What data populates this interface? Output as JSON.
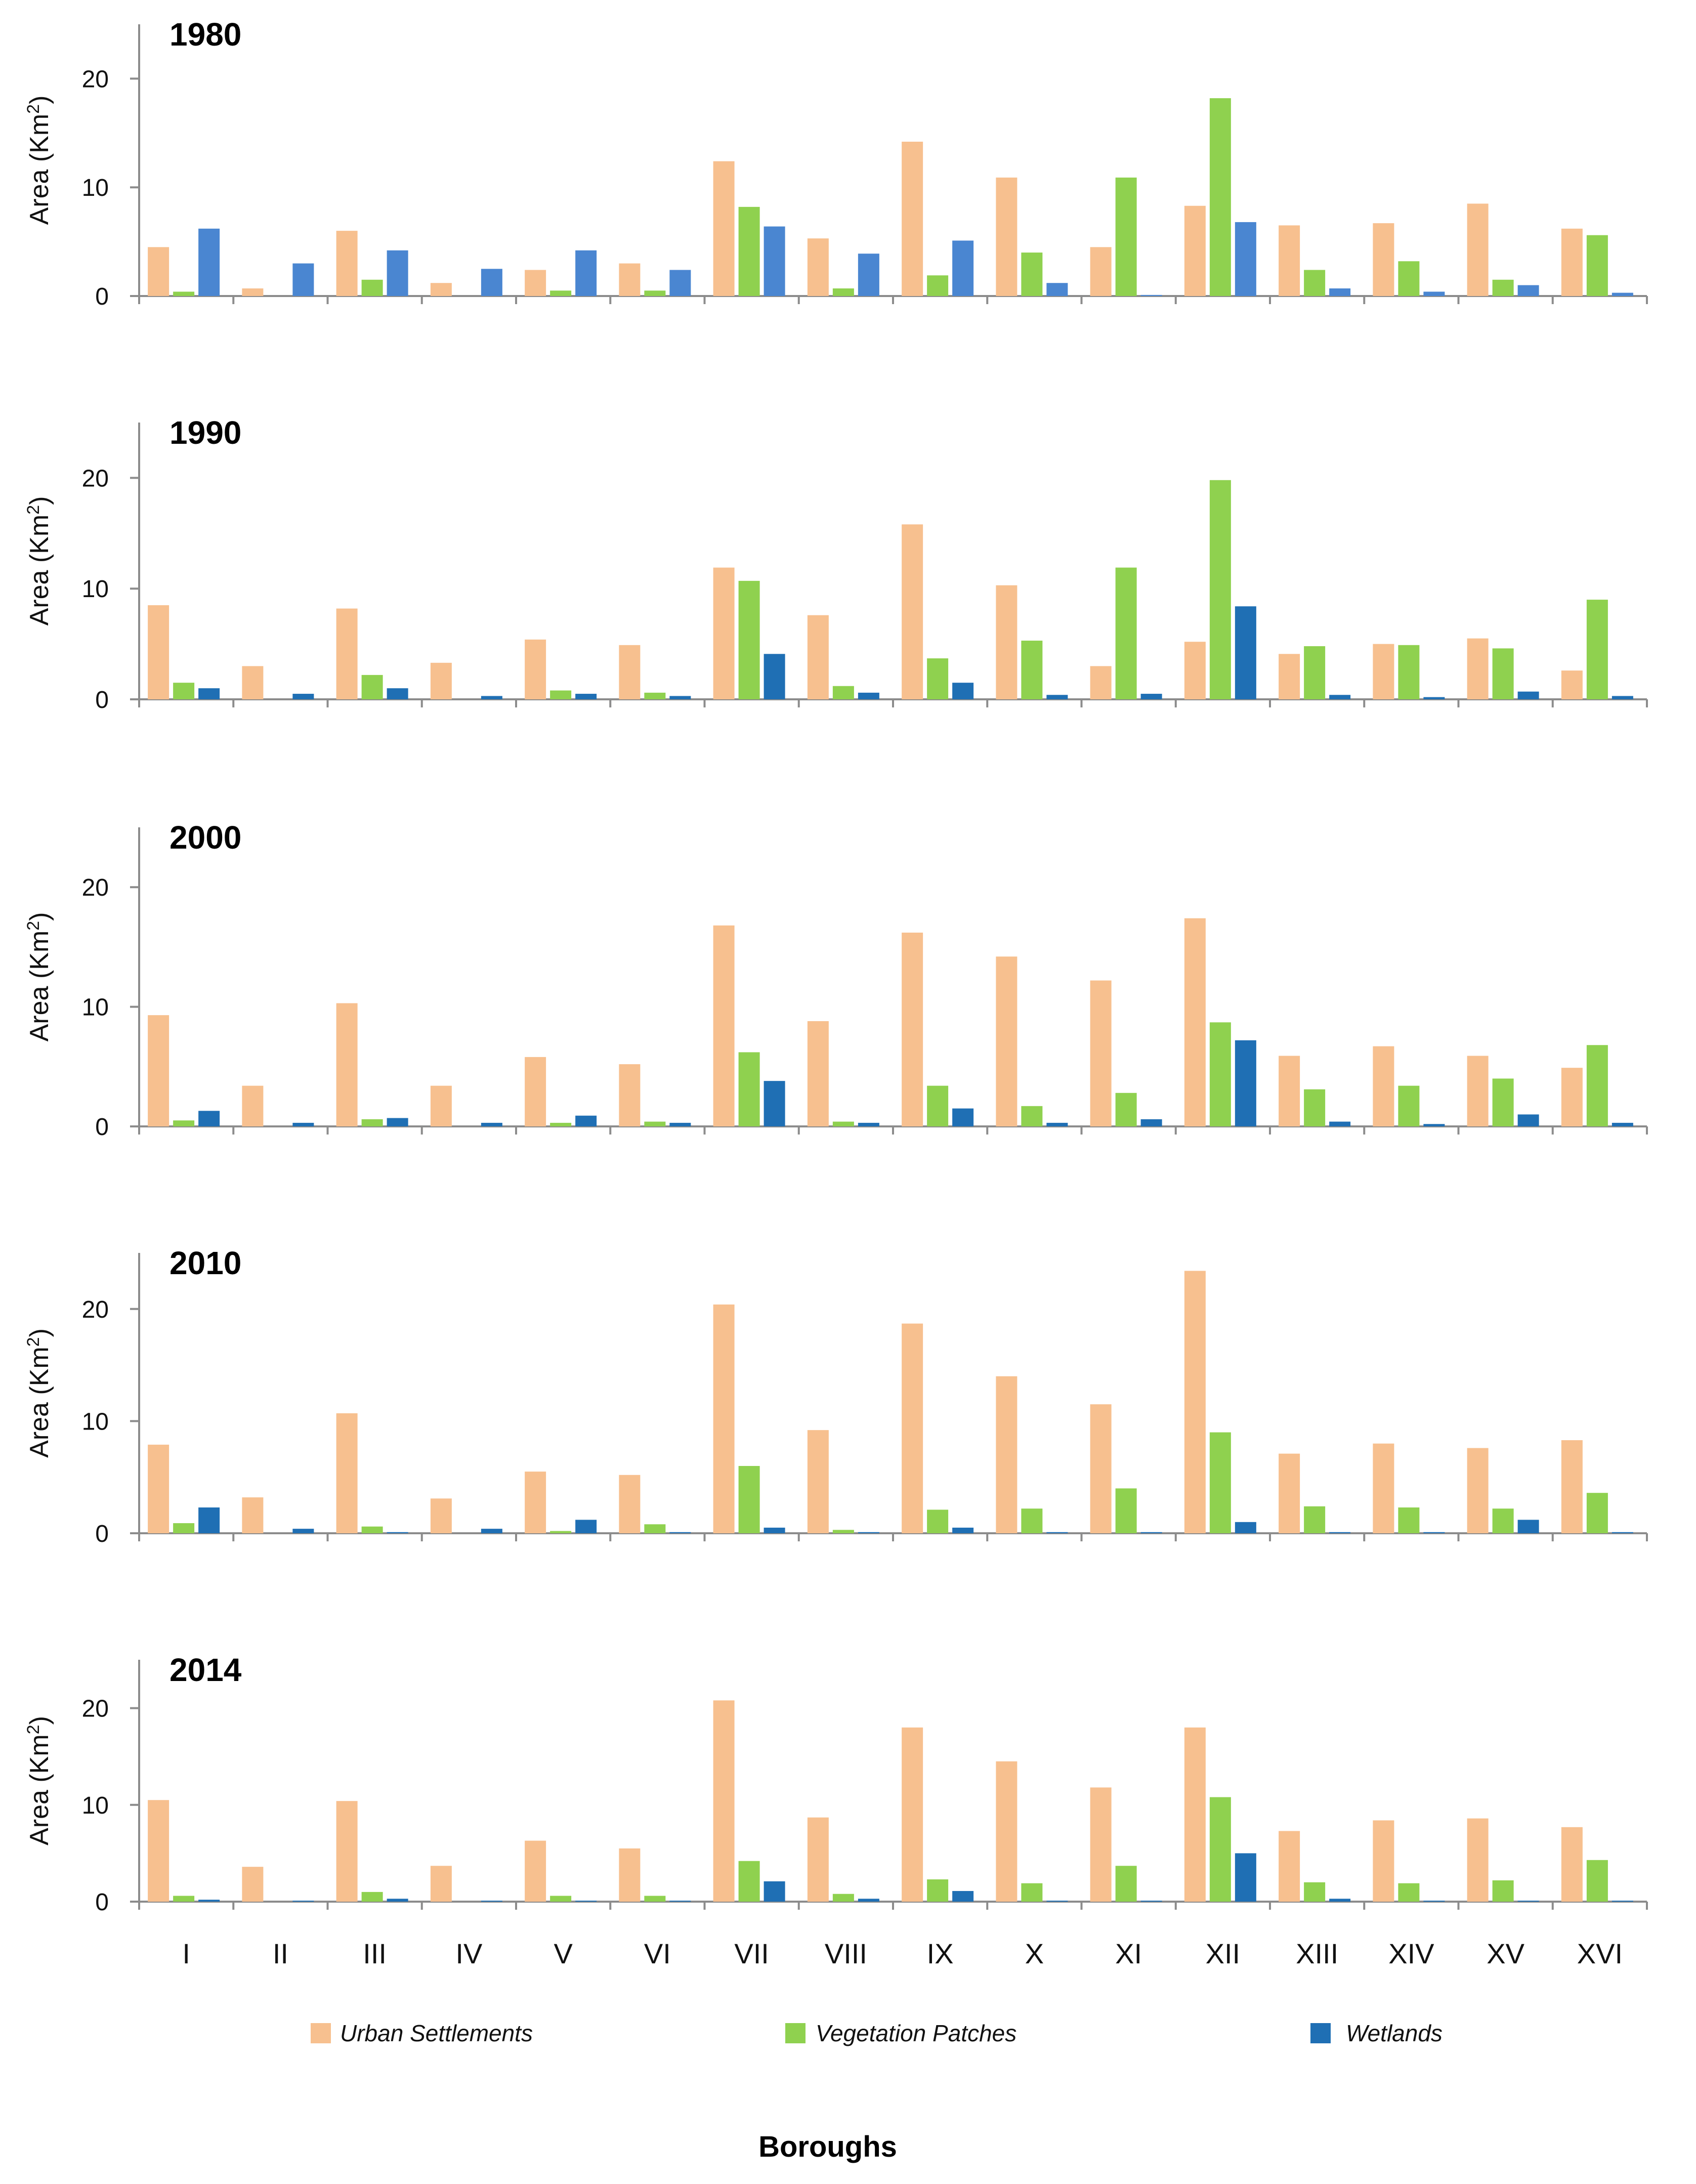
{
  "chart_data": {
    "type": "bar",
    "title": "",
    "xlabel": "Boroughs",
    "ylabel": "Area (Km²)",
    "ylabel_base": "Area (Km",
    "ylabel_sup": "2",
    "ylabel_end": ")",
    "ylim": [
      0,
      25
    ],
    "yticks": [
      "0",
      "10",
      "20"
    ],
    "grid": false,
    "legend_position": "bottom",
    "categories": [
      "I",
      "II",
      "III",
      "IV",
      "V",
      "VI",
      "VII",
      "VIII",
      "IX",
      "X",
      "XI",
      "XII",
      "XIII",
      "XIV",
      "XV",
      "XVI"
    ],
    "series_names": [
      "Urban Settlements",
      "Vegetation Patches",
      "Wetlands"
    ],
    "panels": [
      {
        "year": "1980",
        "series": [
          {
            "name": "Urban Settlements",
            "values": [
              4.5,
              0.7,
              6.0,
              1.2,
              2.4,
              3.0,
              12.4,
              5.3,
              14.2,
              10.9,
              4.5,
              8.3,
              6.5,
              6.7,
              8.5,
              6.2
            ]
          },
          {
            "name": "Vegetation Patches",
            "values": [
              0.4,
              0.0,
              1.5,
              0.0,
              0.5,
              0.5,
              8.2,
              0.7,
              1.9,
              4.0,
              10.9,
              18.2,
              2.4,
              3.2,
              1.5,
              5.6
            ]
          },
          {
            "name": "Wetlands",
            "values": [
              6.2,
              3.0,
              4.2,
              2.5,
              4.2,
              2.4,
              6.4,
              3.9,
              5.1,
              1.2,
              0.1,
              6.8,
              0.7,
              0.4,
              1.0,
              0.3
            ]
          }
        ]
      },
      {
        "year": "1990",
        "series": [
          {
            "name": "Urban Settlements",
            "values": [
              8.5,
              3.0,
              8.2,
              3.3,
              5.4,
              4.9,
              11.9,
              7.6,
              15.8,
              10.3,
              3.0,
              5.2,
              4.1,
              5.0,
              5.5,
              2.6
            ]
          },
          {
            "name": "Vegetation Patches",
            "values": [
              1.5,
              0.0,
              2.2,
              0.0,
              0.8,
              0.6,
              10.7,
              1.2,
              3.7,
              5.3,
              11.9,
              19.8,
              4.8,
              4.9,
              4.6,
              9.0
            ]
          },
          {
            "name": "Wetlands",
            "values": [
              1.0,
              0.5,
              1.0,
              0.3,
              0.5,
              0.3,
              4.1,
              0.6,
              1.5,
              0.4,
              0.5,
              8.4,
              0.4,
              0.2,
              0.7,
              0.3
            ]
          }
        ]
      },
      {
        "year": "2000",
        "series": [
          {
            "name": "Urban Settlements",
            "values": [
              9.3,
              3.4,
              10.3,
              3.4,
              5.8,
              5.2,
              16.8,
              8.8,
              16.2,
              14.2,
              12.2,
              17.4,
              5.9,
              6.7,
              5.9,
              4.9
            ]
          },
          {
            "name": "Vegetation Patches",
            "values": [
              0.5,
              0.0,
              0.6,
              0.0,
              0.3,
              0.4,
              6.2,
              0.4,
              3.4,
              1.7,
              2.8,
              8.7,
              3.1,
              3.4,
              4.0,
              6.8
            ]
          },
          {
            "name": "Wetlands",
            "values": [
              1.3,
              0.3,
              0.7,
              0.3,
              0.9,
              0.3,
              3.8,
              0.3,
              1.5,
              0.3,
              0.6,
              7.2,
              0.4,
              0.2,
              1.0,
              0.3
            ]
          }
        ]
      },
      {
        "year": "2010",
        "series": [
          {
            "name": "Urban Settlements",
            "values": [
              7.9,
              3.2,
              10.7,
              3.1,
              5.5,
              5.2,
              20.4,
              9.2,
              18.7,
              14.0,
              11.5,
              23.4,
              7.1,
              8.0,
              7.6,
              8.3
            ]
          },
          {
            "name": "Vegetation Patches",
            "values": [
              0.9,
              0.0,
              0.6,
              0.0,
              0.2,
              0.8,
              6.0,
              0.3,
              2.1,
              2.2,
              4.0,
              9.0,
              2.4,
              2.3,
              2.2,
              3.6
            ]
          },
          {
            "name": "Wetlands",
            "values": [
              2.3,
              0.4,
              0.1,
              0.4,
              1.2,
              0.1,
              0.5,
              0.1,
              0.5,
              0.1,
              0.1,
              1.0,
              0.1,
              0.1,
              1.2,
              0.1
            ]
          }
        ]
      },
      {
        "year": "2014",
        "series": [
          {
            "name": "Urban Settlements",
            "values": [
              10.5,
              3.6,
              10.4,
              3.7,
              6.3,
              5.5,
              20.8,
              8.7,
              18.0,
              14.5,
              11.8,
              18.0,
              7.3,
              8.4,
              8.6,
              7.7
            ]
          },
          {
            "name": "Vegetation Patches",
            "values": [
              0.6,
              0.0,
              1.0,
              0.0,
              0.6,
              0.6,
              4.2,
              0.8,
              2.3,
              1.9,
              3.7,
              10.8,
              2.0,
              1.9,
              2.2,
              4.3
            ]
          },
          {
            "name": "Wetlands",
            "values": [
              0.2,
              0.1,
              0.3,
              0.1,
              0.1,
              0.1,
              2.1,
              0.3,
              1.1,
              0.1,
              0.1,
              5.0,
              0.3,
              0.1,
              0.1,
              0.1
            ]
          }
        ]
      }
    ]
  },
  "colors": {
    "urban": "#f7c08f",
    "vegetation": "#8fd14f",
    "wetlands_1980": "#4a86d1",
    "wetlands": "#1f6fb4",
    "axis": "#8c8c8c"
  }
}
